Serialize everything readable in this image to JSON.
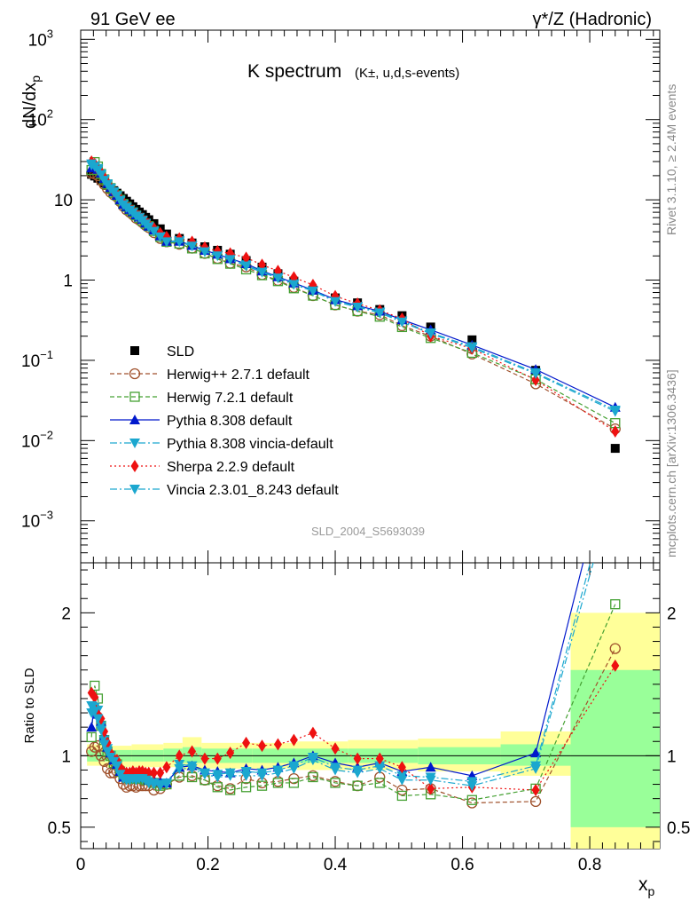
{
  "header": {
    "left": "91 GeV ee",
    "right": "γ*/Z (Hadronic)"
  },
  "chart_data": {
    "type": "line",
    "title": "K spectrum",
    "subtitle": "(K±, u,d,s-events)",
    "ylabel": "dN/dx_p",
    "ratio_ylabel": "Ratio to SLD",
    "xlabel": "x_p",
    "analysis_id": "SLD_2004_S5693039",
    "side_label_top": "Rivet 3.1.10, ≥ 2.4M events",
    "side_label_bottom": "mcplots.cern.ch [arXiv:1306.3436]",
    "xlim": [
      0,
      0.91
    ],
    "ylim": [
      0.0003,
      1300
    ],
    "yscale": "log",
    "ratio_ylim": [
      0.35,
      2.35
    ],
    "x_ticks": [
      "0",
      "0.2",
      "0.4",
      "0.6",
      "0.8"
    ],
    "y_ticks": [
      "10^-3",
      "10^-2",
      "10^-1",
      "1",
      "10",
      "10^2",
      "10^3"
    ],
    "ratio_ticks": [
      "0.5",
      "1",
      "2"
    ],
    "x": [
      0.017,
      0.022,
      0.027,
      0.032,
      0.037,
      0.042,
      0.047,
      0.052,
      0.057,
      0.062,
      0.067,
      0.072,
      0.077,
      0.082,
      0.087,
      0.092,
      0.097,
      0.102,
      0.107,
      0.115,
      0.125,
      0.135,
      0.155,
      0.175,
      0.195,
      0.215,
      0.235,
      0.26,
      0.285,
      0.31,
      0.335,
      0.365,
      0.4,
      0.435,
      0.47,
      0.505,
      0.55,
      0.615,
      0.715,
      0.84
    ],
    "series": [
      {
        "name": "SLD",
        "color": "#000000",
        "values": [
          20.8,
          19.8,
          18.6,
          17.4,
          16.2,
          15.1,
          14.0,
          13.0,
          12.1,
          11.25,
          10.4,
          9.6,
          8.9,
          8.2,
          7.6,
          7.05,
          6.55,
          6.05,
          5.65,
          5.05,
          4.35,
          3.75,
          3.3,
          2.9,
          2.6,
          2.35,
          2.1,
          1.75,
          1.45,
          1.2,
          0.97,
          0.75,
          0.6,
          0.52,
          0.43,
          0.36,
          0.26,
          0.18,
          0.075,
          0.008
        ]
      },
      {
        "name": "Herwig++ 2.7.1 default",
        "color": "#a0522d",
        "values": [
          21.5,
          21.0,
          20.0,
          17.5,
          15.5,
          13.8,
          12.4,
          11.5,
          10.8,
          9.5,
          8.3,
          7.5,
          7.0,
          6.5,
          5.9,
          5.6,
          5.2,
          4.8,
          4.5,
          3.9,
          3.3,
          3.0,
          2.8,
          2.5,
          2.15,
          1.86,
          1.62,
          1.46,
          1.17,
          0.99,
          0.81,
          0.64,
          0.49,
          0.41,
          0.37,
          0.27,
          0.2,
          0.12,
          0.051,
          0.014
        ]
      },
      {
        "name": "Herwig 7.2.1 default",
        "color": "#44a032",
        "values": [
          23.5,
          29.5,
          26.0,
          21.0,
          18.0,
          15.6,
          14.0,
          12.3,
          11.4,
          10.0,
          8.9,
          8.2,
          7.5,
          7.0,
          6.4,
          5.95,
          5.5,
          5.05,
          4.7,
          4.1,
          3.45,
          3.0,
          2.85,
          2.48,
          2.15,
          1.83,
          1.6,
          1.36,
          1.15,
          0.97,
          0.79,
          0.64,
          0.49,
          0.41,
          0.35,
          0.26,
          0.19,
          0.124,
          0.058,
          0.0165
        ]
      },
      {
        "name": "Pythia 8.308 default",
        "color": "#0018cc",
        "values": [
          25.0,
          27.0,
          24.0,
          21.5,
          18.5,
          16.0,
          14.3,
          12.6,
          11.4,
          10.0,
          8.8,
          8.2,
          7.6,
          7.1,
          6.5,
          6.1,
          5.7,
          5.15,
          4.7,
          4.2,
          3.55,
          3.05,
          3.05,
          2.7,
          2.35,
          2.1,
          1.85,
          1.6,
          1.3,
          1.1,
          0.92,
          0.75,
          0.57,
          0.48,
          0.41,
          0.32,
          0.24,
          0.155,
          0.077,
          0.026
        ]
      },
      {
        "name": "Pythia 8.308 vincia-default",
        "color": "#1ba7cf",
        "values": [
          27.0,
          26.5,
          24.5,
          21.0,
          18.0,
          15.8,
          14.0,
          12.6,
          11.3,
          9.9,
          8.8,
          8.1,
          7.5,
          7.0,
          6.4,
          6.05,
          5.6,
          5.1,
          4.65,
          4.1,
          3.5,
          3.05,
          3.1,
          2.7,
          2.3,
          2.05,
          1.85,
          1.55,
          1.27,
          1.08,
          0.9,
          0.74,
          0.55,
          0.47,
          0.4,
          0.31,
          0.22,
          0.148,
          0.07,
          0.024
        ]
      },
      {
        "name": "Sherpa 2.2.9 default",
        "color": "#ee1111",
        "values": [
          30.0,
          28.0,
          24.0,
          22.0,
          19.0,
          16.5,
          14.3,
          12.7,
          11.7,
          10.3,
          9.3,
          8.4,
          7.8,
          7.3,
          6.7,
          6.25,
          5.8,
          5.35,
          4.95,
          4.45,
          3.85,
          3.45,
          3.3,
          3.0,
          2.55,
          2.3,
          2.15,
          1.9,
          1.55,
          1.3,
          1.08,
          0.87,
          0.63,
          0.51,
          0.42,
          0.33,
          0.2,
          0.14,
          0.057,
          0.013
        ]
      },
      {
        "name": "Vincia 2.3.01_8.243 default",
        "color": "#1ba7cf",
        "values": [
          28.0,
          26.0,
          23.5,
          20.5,
          17.5,
          15.5,
          13.8,
          12.5,
          11.2,
          9.8,
          8.7,
          8.0,
          7.4,
          6.9,
          6.3,
          5.95,
          5.5,
          5.0,
          4.6,
          4.05,
          3.45,
          3.0,
          3.0,
          2.65,
          2.25,
          2.0,
          1.8,
          1.5,
          1.25,
          1.06,
          0.88,
          0.73,
          0.54,
          0.46,
          0.39,
          0.3,
          0.215,
          0.143,
          0.068,
          0.023
        ]
      }
    ],
    "ratios": {
      "Herwig++ 2.7.1 default": [
        1.03,
        1.06,
        1.07,
        1.0,
        0.96,
        0.91,
        0.88,
        0.88,
        0.89,
        0.84,
        0.8,
        0.78,
        0.79,
        0.79,
        0.78,
        0.79,
        0.79,
        0.79,
        0.79,
        0.76,
        0.77,
        0.8,
        0.85,
        0.86,
        0.83,
        0.79,
        0.77,
        0.84,
        0.81,
        0.82,
        0.84,
        0.86,
        0.82,
        0.79,
        0.85,
        0.76,
        0.77,
        0.67,
        0.68,
        1.75
      ],
      "Herwig 7.2.1 default": [
        1.13,
        1.49,
        1.4,
        1.21,
        1.11,
        1.03,
        1.0,
        0.95,
        0.94,
        0.89,
        0.86,
        0.85,
        0.84,
        0.85,
        0.84,
        0.84,
        0.84,
        0.83,
        0.83,
        0.81,
        0.79,
        0.8,
        0.86,
        0.85,
        0.83,
        0.78,
        0.76,
        0.78,
        0.79,
        0.81,
        0.81,
        0.85,
        0.81,
        0.79,
        0.81,
        0.72,
        0.73,
        0.69,
        0.77,
        2.06
      ],
      "Pythia 8.308 default": [
        1.2,
        1.36,
        1.29,
        1.24,
        1.14,
        1.06,
        1.02,
        0.97,
        0.94,
        0.89,
        0.85,
        0.85,
        0.85,
        0.87,
        0.86,
        0.87,
        0.87,
        0.85,
        0.83,
        0.83,
        0.82,
        0.81,
        0.92,
        0.93,
        0.9,
        0.89,
        0.88,
        0.91,
        0.9,
        0.92,
        0.95,
        1.0,
        0.95,
        0.92,
        0.95,
        0.89,
        0.92,
        0.86,
        1.02,
        3.25
      ],
      "Pythia 8.308 vincia-default": [
        1.3,
        1.34,
        1.32,
        1.21,
        1.11,
        1.05,
        1.0,
        0.97,
        0.93,
        0.88,
        0.85,
        0.84,
        0.84,
        0.85,
        0.84,
        0.86,
        0.86,
        0.84,
        0.82,
        0.81,
        0.8,
        0.81,
        0.94,
        0.93,
        0.88,
        0.87,
        0.88,
        0.89,
        0.88,
        0.9,
        0.93,
        0.99,
        0.92,
        0.9,
        0.93,
        0.86,
        0.85,
        0.82,
        0.93,
        3.0
      ],
      "Sherpa 2.2.9 default": [
        1.44,
        1.41,
        1.29,
        1.26,
        1.17,
        1.09,
        1.02,
        0.98,
        0.97,
        0.92,
        0.89,
        0.88,
        0.88,
        0.89,
        0.88,
        0.89,
        0.89,
        0.88,
        0.88,
        0.88,
        0.88,
        0.92,
        1.0,
        1.03,
        0.98,
        0.98,
        1.02,
        1.09,
        1.07,
        1.08,
        1.11,
        1.16,
        1.05,
        0.98,
        0.98,
        0.92,
        0.77,
        0.78,
        0.76,
        1.63
      ],
      "Vincia 2.3.01_8.243 default": [
        1.35,
        1.31,
        1.26,
        1.18,
        1.08,
        1.03,
        0.99,
        0.96,
        0.93,
        0.87,
        0.84,
        0.83,
        0.83,
        0.84,
        0.83,
        0.84,
        0.84,
        0.83,
        0.81,
        0.8,
        0.79,
        0.8,
        0.91,
        0.91,
        0.87,
        0.85,
        0.86,
        0.86,
        0.86,
        0.88,
        0.91,
        0.97,
        0.9,
        0.88,
        0.91,
        0.83,
        0.83,
        0.79,
        0.91,
        2.9
      ]
    },
    "ratio_bands": [
      {
        "x": [
          0.01,
          0.04
        ],
        "yellow": [
          0.93,
          1.08
        ],
        "green": [
          0.96,
          1.04
        ]
      },
      {
        "x": [
          0.04,
          0.08
        ],
        "yellow": [
          0.92,
          1.07
        ],
        "green": [
          0.96,
          1.04
        ]
      },
      {
        "x": [
          0.08,
          0.13
        ],
        "yellow": [
          0.92,
          1.08
        ],
        "green": [
          0.96,
          1.04
        ]
      },
      {
        "x": [
          0.13,
          0.16
        ],
        "yellow": [
          0.92,
          1.09
        ],
        "green": [
          0.96,
          1.05
        ]
      },
      {
        "x": [
          0.16,
          0.19
        ],
        "yellow": [
          0.9,
          1.13
        ],
        "green": [
          0.95,
          1.06
        ]
      },
      {
        "x": [
          0.19,
          0.27
        ],
        "yellow": [
          0.91,
          1.09
        ],
        "green": [
          0.95,
          1.05
        ]
      },
      {
        "x": [
          0.27,
          0.34
        ],
        "yellow": [
          0.91,
          1.09
        ],
        "green": [
          0.95,
          1.05
        ]
      },
      {
        "x": [
          0.34,
          0.42
        ],
        "yellow": [
          0.9,
          1.1
        ],
        "green": [
          0.95,
          1.05
        ]
      },
      {
        "x": [
          0.42,
          0.53
        ],
        "yellow": [
          0.9,
          1.11
        ],
        "green": [
          0.95,
          1.05
        ]
      },
      {
        "x": [
          0.53,
          0.66
        ],
        "yellow": [
          0.89,
          1.12
        ],
        "green": [
          0.94,
          1.06
        ]
      },
      {
        "x": [
          0.66,
          0.77
        ],
        "yellow": [
          0.86,
          1.17
        ],
        "green": [
          0.93,
          1.08
        ]
      },
      {
        "x": [
          0.77,
          0.91
        ],
        "yellow": [
          0.35,
          2.0
        ],
        "green": [
          0.5,
          1.6
        ]
      }
    ],
    "legend_position": "left-middle"
  }
}
